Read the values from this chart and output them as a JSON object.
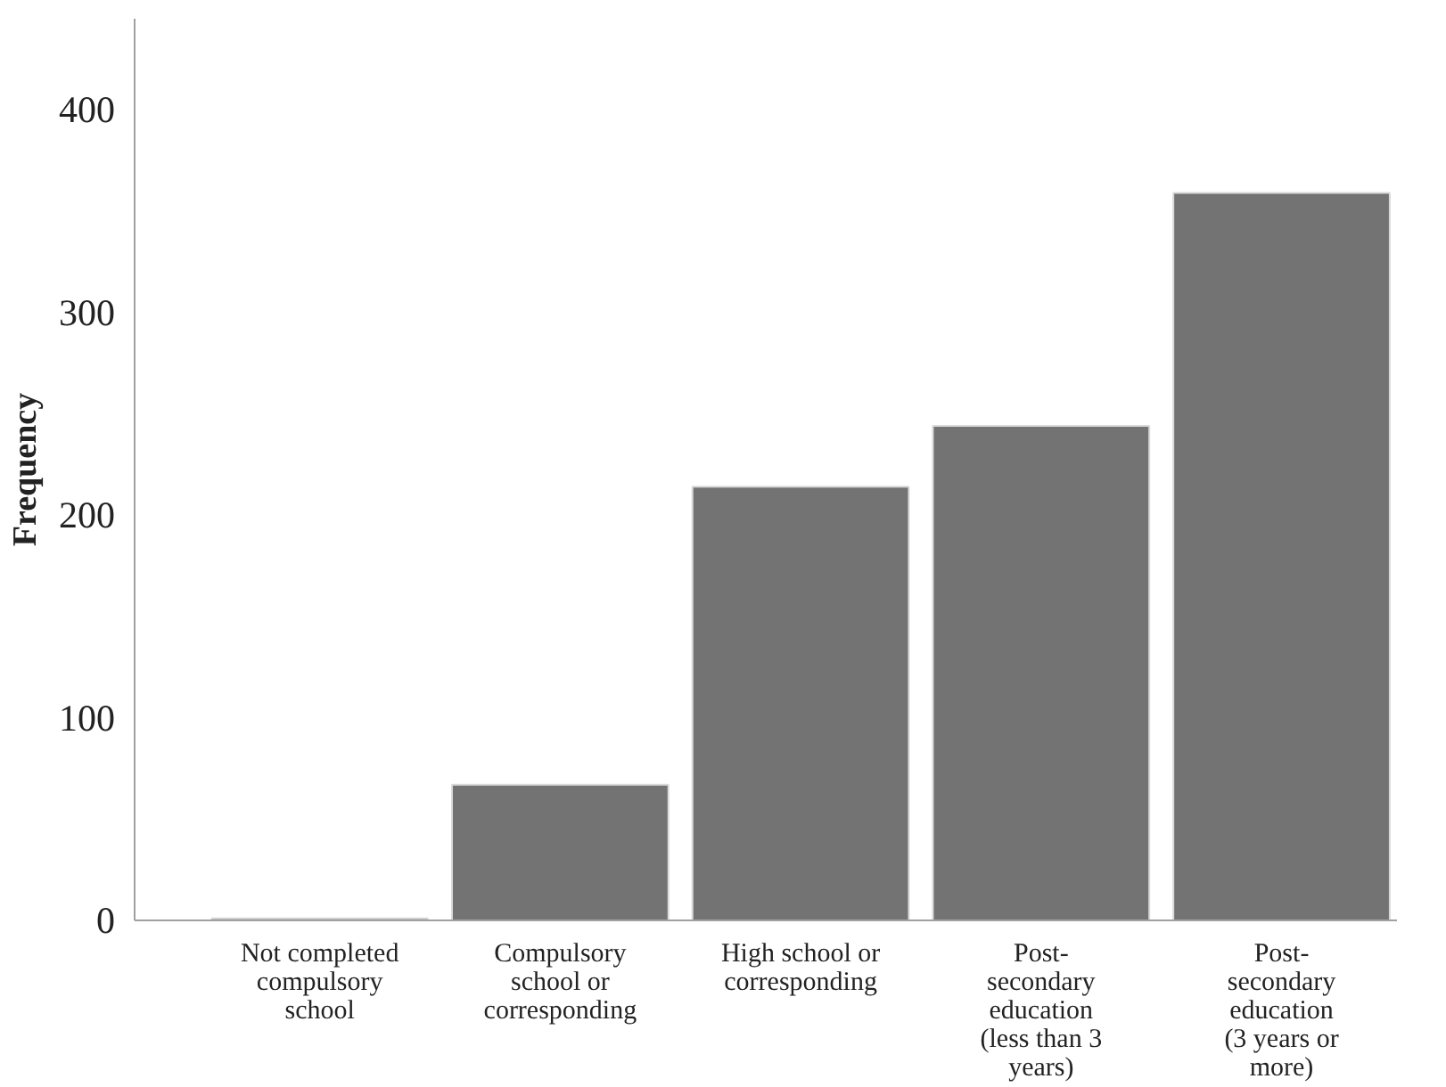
{
  "chart_data": {
    "type": "bar",
    "ylabel": "Frequency",
    "categories": [
      "Not completed\ncompulsory\nschool",
      "Compulsory\nschool or\ncorresponding",
      "High school or\ncorresponding",
      "Post-\nsecondary\neducation\n(less than 3\nyears)",
      "Post-\nsecondary\neducation\n(3 years or\nmore)"
    ],
    "values": [
      1,
      67,
      214,
      244,
      359
    ],
    "color": "#737373",
    "ylim": [
      0,
      445
    ],
    "yticks": [
      0,
      100,
      200,
      300,
      400
    ],
    "grid": false
  }
}
